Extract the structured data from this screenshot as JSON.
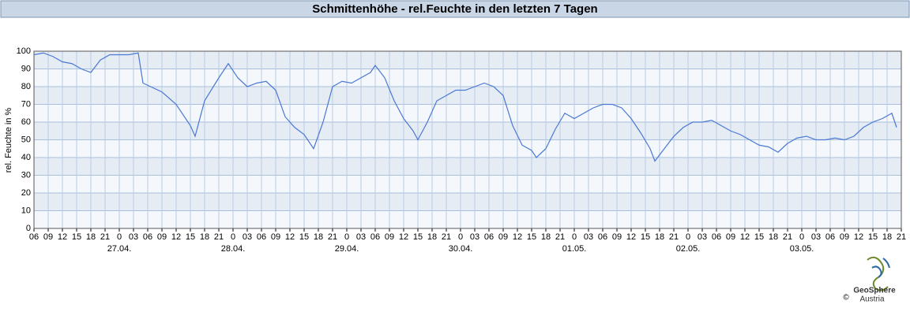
{
  "chart_data": {
    "type": "line",
    "title": "Schmittenhöhe - rel.Feuchte in den letzten 7 Tagen",
    "y_label": "rel. Feuchte in %",
    "logo": {
      "name": "GeoSphere",
      "sub": "Austria",
      "copyright": "©"
    },
    "grid": true,
    "series": [
      {
        "name": "rel. Feuchte",
        "color": "#4a78d4",
        "x": [
          0,
          2,
          4,
          6,
          8,
          10,
          12,
          14,
          16,
          18,
          20,
          22,
          23,
          27,
          30,
          33,
          34,
          36,
          39,
          41,
          43,
          45,
          47,
          49,
          51,
          53,
          55,
          57,
          59,
          61,
          63,
          65,
          67,
          69,
          71,
          72,
          74,
          76,
          78,
          80,
          81,
          83,
          85,
          87,
          89,
          91,
          93,
          95,
          97,
          99,
          101,
          103,
          105,
          106,
          108,
          110,
          112,
          114,
          116,
          118,
          120,
          122,
          124,
          126,
          128,
          130,
          131,
          133,
          135,
          137,
          139,
          141,
          143,
          145,
          147,
          149,
          151,
          153,
          155,
          157,
          159,
          161,
          163,
          165,
          167,
          169,
          171,
          173,
          175,
          177,
          179,
          181,
          182
        ],
        "values": [
          98,
          99,
          97,
          94,
          93,
          90,
          88,
          95,
          98,
          98,
          98,
          99,
          82,
          77,
          70,
          58,
          52,
          72,
          85,
          93,
          85,
          80,
          82,
          83,
          78,
          63,
          57,
          53,
          45,
          60,
          80,
          83,
          82,
          85,
          88,
          92,
          85,
          72,
          62,
          55,
          50,
          60,
          72,
          75,
          78,
          78,
          80,
          82,
          80,
          75,
          58,
          47,
          44,
          40,
          45,
          56,
          65,
          62,
          65,
          68,
          70,
          70,
          68,
          62,
          54,
          45,
          38,
          45,
          52,
          57,
          60,
          60,
          61,
          58,
          55,
          53,
          50,
          47,
          46,
          43,
          48,
          51,
          52,
          50,
          50,
          51,
          50,
          52,
          57,
          60,
          62,
          65,
          57
        ]
      }
    ],
    "xlim": [
      0,
      183
    ],
    "ylim": [
      0,
      100
    ],
    "yticks": [
      0,
      10,
      20,
      30,
      40,
      50,
      60,
      70,
      80,
      90,
      100
    ],
    "xticks": [
      {
        "value": 0,
        "label": "06"
      },
      {
        "value": 3,
        "label": "09"
      },
      {
        "value": 6,
        "label": "12"
      },
      {
        "value": 9,
        "label": "15"
      },
      {
        "value": 12,
        "label": "18"
      },
      {
        "value": 15,
        "label": "21"
      },
      {
        "value": 18,
        "label": "0"
      },
      {
        "value": 21,
        "label": "03"
      },
      {
        "value": 24,
        "label": "06"
      },
      {
        "value": 27,
        "label": "09"
      },
      {
        "value": 30,
        "label": "12"
      },
      {
        "value": 33,
        "label": "15"
      },
      {
        "value": 36,
        "label": "18"
      },
      {
        "value": 39,
        "label": "21"
      },
      {
        "value": 42,
        "label": "0"
      },
      {
        "value": 45,
        "label": "03"
      },
      {
        "value": 48,
        "label": "06"
      },
      {
        "value": 51,
        "label": "09"
      },
      {
        "value": 54,
        "label": "12"
      },
      {
        "value": 57,
        "label": "15"
      },
      {
        "value": 60,
        "label": "18"
      },
      {
        "value": 63,
        "label": "21"
      },
      {
        "value": 66,
        "label": "0"
      },
      {
        "value": 69,
        "label": "03"
      },
      {
        "value": 72,
        "label": "06"
      },
      {
        "value": 75,
        "label": "09"
      },
      {
        "value": 78,
        "label": "12"
      },
      {
        "value": 81,
        "label": "15"
      },
      {
        "value": 84,
        "label": "18"
      },
      {
        "value": 87,
        "label": "21"
      },
      {
        "value": 90,
        "label": "0"
      },
      {
        "value": 93,
        "label": "03"
      },
      {
        "value": 96,
        "label": "06"
      },
      {
        "value": 99,
        "label": "09"
      },
      {
        "value": 102,
        "label": "12"
      },
      {
        "value": 105,
        "label": "15"
      },
      {
        "value": 108,
        "label": "18"
      },
      {
        "value": 111,
        "label": "21"
      },
      {
        "value": 114,
        "label": "0"
      },
      {
        "value": 117,
        "label": "03"
      },
      {
        "value": 120,
        "label": "06"
      },
      {
        "value": 123,
        "label": "09"
      },
      {
        "value": 126,
        "label": "12"
      },
      {
        "value": 129,
        "label": "15"
      },
      {
        "value": 132,
        "label": "18"
      },
      {
        "value": 135,
        "label": "21"
      },
      {
        "value": 138,
        "label": "0"
      },
      {
        "value": 141,
        "label": "03"
      },
      {
        "value": 144,
        "label": "06"
      },
      {
        "value": 147,
        "label": "09"
      },
      {
        "value": 150,
        "label": "12"
      },
      {
        "value": 153,
        "label": "15"
      },
      {
        "value": 156,
        "label": "18"
      },
      {
        "value": 159,
        "label": "21"
      },
      {
        "value": 162,
        "label": "0"
      },
      {
        "value": 165,
        "label": "03"
      },
      {
        "value": 168,
        "label": "06"
      },
      {
        "value": 171,
        "label": "09"
      },
      {
        "value": 174,
        "label": "12"
      },
      {
        "value": 177,
        "label": "15"
      },
      {
        "value": 180,
        "label": "18"
      },
      {
        "value": 183,
        "label": "21"
      }
    ],
    "day_labels": [
      {
        "value": 18,
        "label": "27.04."
      },
      {
        "value": 42,
        "label": "28.04."
      },
      {
        "value": 66,
        "label": "29.04."
      },
      {
        "value": 90,
        "label": "30.04."
      },
      {
        "value": 114,
        "label": "01.05."
      },
      {
        "value": 138,
        "label": "02.05."
      },
      {
        "value": 162,
        "label": "03.05."
      }
    ]
  }
}
